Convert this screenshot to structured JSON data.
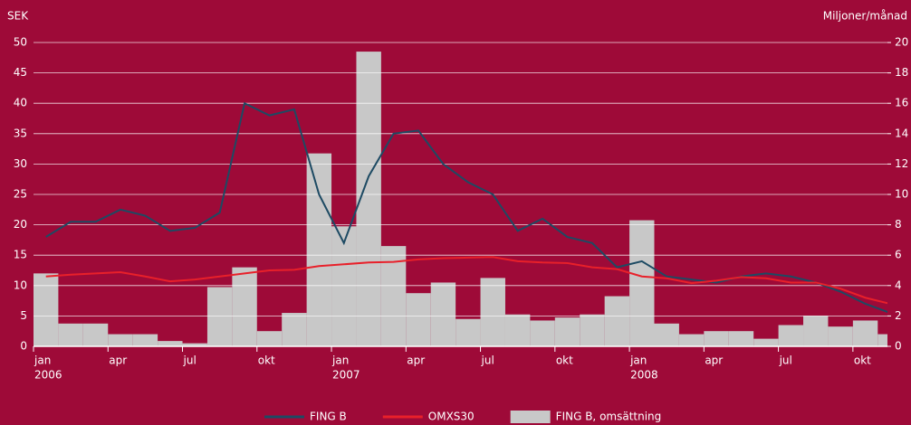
{
  "chart_data": {
    "type": "bar-line",
    "y_label": "SEK",
    "y2_label": "Miljoner/månad",
    "categories": [
      "jan",
      null,
      null,
      "apr",
      null,
      null,
      "jul",
      null,
      null,
      "okt",
      null,
      null,
      "jan",
      null,
      null,
      "apr",
      null,
      null,
      "jul",
      null,
      null,
      "okt",
      null,
      null,
      "jan",
      null,
      null,
      "apr",
      null,
      null,
      "jul",
      null,
      null,
      "okt",
      null
    ],
    "years": [
      "2006",
      null,
      null,
      null,
      null,
      null,
      null,
      null,
      null,
      null,
      null,
      null,
      "2007",
      null,
      null,
      null,
      null,
      null,
      null,
      null,
      null,
      null,
      null,
      null,
      "2008",
      null,
      null,
      null,
      null,
      null,
      null,
      null,
      null,
      null,
      null
    ],
    "series": [
      {
        "name": "FING B",
        "kind": "line",
        "color": "#1d4a63",
        "axis": "y",
        "values": [
          18,
          20.5,
          20.5,
          22.5,
          21.5,
          19,
          19.5,
          22,
          40,
          38,
          39,
          25,
          17,
          28,
          35,
          35.5,
          30,
          27,
          25,
          19,
          21,
          18,
          17,
          13,
          14,
          11.5,
          11,
          10.5,
          11.5,
          12,
          11.5,
          10.5,
          9,
          7,
          5.5
        ]
      },
      {
        "name": "OMXS30",
        "kind": "line",
        "color": "#e8202a",
        "axis": "y",
        "values": [
          11.5,
          11.8,
          12,
          12.2,
          11.5,
          10.7,
          11,
          11.5,
          12,
          12.5,
          12.6,
          13.2,
          13.5,
          13.8,
          13.9,
          14.3,
          14.5,
          14.6,
          14.7,
          14,
          13.8,
          13.7,
          13,
          12.7,
          11.5,
          11.2,
          10.4,
          10.8,
          11.4,
          11.2,
          10.5,
          10.5,
          9.5,
          8,
          7
        ]
      },
      {
        "name": "FING B, omsättning",
        "kind": "bar",
        "color": "#c8c8c8",
        "axis": "y2",
        "values": [
          4.8,
          1.5,
          1.5,
          0.8,
          0.8,
          0.35,
          0.2,
          3.9,
          5.2,
          1.0,
          2.2,
          12.7,
          7.9,
          19.4,
          6.6,
          3.5,
          4.2,
          1.8,
          4.5,
          2.1,
          1.7,
          1.9,
          2.1,
          3.3,
          8.3,
          1.5,
          0.8,
          1.0,
          1.0,
          0.5,
          1.4,
          2.0,
          1.3,
          1.7,
          0.8
        ]
      }
    ],
    "ylim": [
      0,
      50
    ],
    "yticks": [
      0,
      5,
      10,
      15,
      20,
      25,
      30,
      35,
      40,
      45,
      50
    ],
    "y2lim": [
      0,
      20
    ],
    "y2ticks": [
      0,
      2,
      4,
      6,
      8,
      10,
      12,
      14,
      16,
      18,
      20
    ],
    "grid": true,
    "legend": "bottom"
  }
}
